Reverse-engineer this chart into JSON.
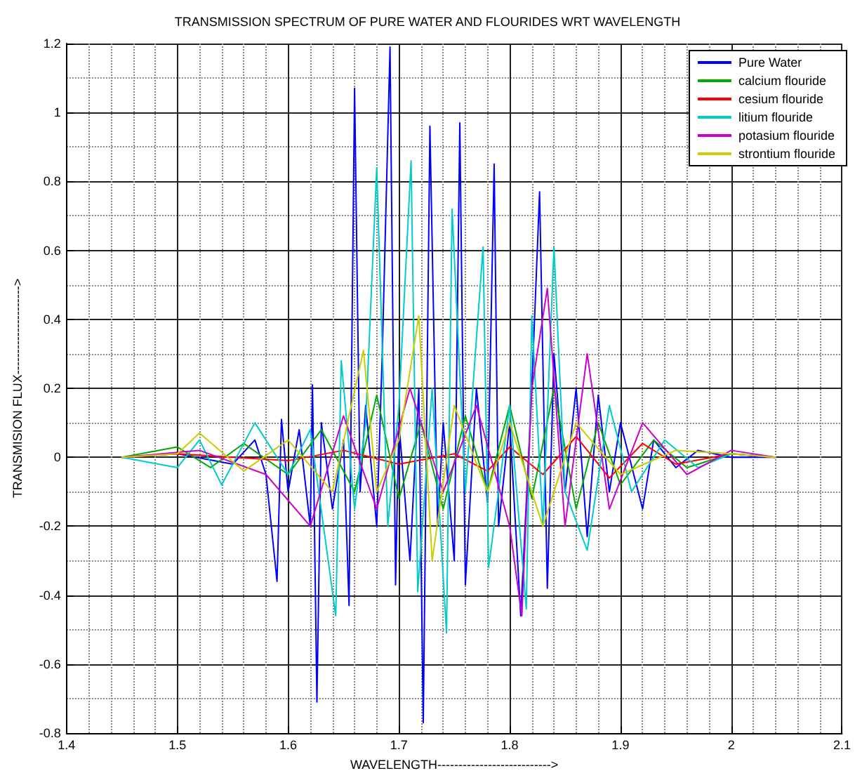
{
  "chart_data": {
    "type": "line",
    "title": "TRANSMISSION SPECTRUM OF PURE WATER AND FLOURIDES WRT WAVELENGTH",
    "xlabel": "WAVELENGTH--------------------------->",
    "ylabel": "TRANSMISION FLUX--------------------->",
    "xlim": [
      1.4,
      2.1
    ],
    "xticks": [
      1.4,
      1.5,
      1.6,
      1.7,
      1.8,
      1.9,
      2,
      2.1
    ],
    "ylim": [
      -0.8,
      1.2
    ],
    "yticks": [
      -0.8,
      -0.6,
      -0.4,
      -0.2,
      0,
      0.2,
      0.4,
      0.6,
      0.8,
      1,
      1.2
    ],
    "grid": true,
    "legend": "top right",
    "marker": "none",
    "line_style": "solid",
    "series": [
      {
        "name": "Pure Water",
        "color": "#0000ff",
        "x": [
          1.45,
          1.5,
          1.55,
          1.57,
          1.58,
          1.59,
          1.594,
          1.6,
          1.61,
          1.62,
          1.622,
          1.626,
          1.63,
          1.64,
          1.65,
          1.655,
          1.66,
          1.665,
          1.67,
          1.68,
          1.685,
          1.692,
          1.697,
          1.7,
          1.71,
          1.718,
          1.722,
          1.728,
          1.735,
          1.74,
          1.75,
          1.755,
          1.76,
          1.77,
          1.78,
          1.786,
          1.79,
          1.8,
          1.81,
          1.82,
          1.827,
          1.834,
          1.84,
          1.85,
          1.86,
          1.87,
          1.88,
          1.89,
          1.9,
          1.92,
          1.93,
          1.95,
          1.97,
          2.0,
          2.04
        ],
        "values": [
          0,
          0.01,
          -0.02,
          0.05,
          -0.05,
          -0.36,
          0.11,
          -0.1,
          0.08,
          -0.2,
          0.21,
          -0.71,
          0.1,
          -0.15,
          0.05,
          -0.43,
          1.07,
          -0.1,
          0.15,
          -0.2,
          0.3,
          1.19,
          -0.37,
          0.1,
          -0.3,
          0.2,
          -0.77,
          0.96,
          -0.2,
          0.1,
          -0.3,
          0.97,
          -0.37,
          0.2,
          -0.13,
          0.85,
          -0.2,
          0.1,
          -0.46,
          0.2,
          0.77,
          -0.38,
          0.3,
          -0.1,
          0.2,
          -0.23,
          0.18,
          -0.1,
          0.1,
          -0.15,
          0.05,
          -0.03,
          0.02,
          0,
          0
        ]
      },
      {
        "name": "calcium flouride",
        "color": "#00aa00",
        "x": [
          1.45,
          1.5,
          1.53,
          1.56,
          1.6,
          1.63,
          1.66,
          1.68,
          1.7,
          1.72,
          1.74,
          1.76,
          1.78,
          1.8,
          1.82,
          1.84,
          1.86,
          1.88,
          1.9,
          1.93,
          1.96,
          2.0,
          2.04
        ],
        "values": [
          0,
          0.03,
          -0.03,
          0.04,
          -0.05,
          0.08,
          -0.1,
          0.18,
          -0.12,
          0.1,
          -0.15,
          0.12,
          -0.1,
          0.15,
          -0.12,
          0.2,
          -0.15,
          0.1,
          -0.08,
          0.05,
          -0.03,
          0.01,
          0
        ]
      },
      {
        "name": "cesium flouride",
        "color": "#ff0000",
        "x": [
          1.45,
          1.5,
          1.55,
          1.6,
          1.65,
          1.7,
          1.75,
          1.78,
          1.8,
          1.83,
          1.86,
          1.89,
          1.92,
          1.95,
          2.0,
          2.04
        ],
        "values": [
          0,
          0.01,
          0,
          -0.01,
          0.02,
          -0.02,
          0.01,
          -0.04,
          0.03,
          -0.05,
          0.06,
          -0.06,
          0.04,
          -0.02,
          0.01,
          0
        ]
      },
      {
        "name": "litium flouride",
        "color": "#00cccc",
        "x": [
          1.45,
          1.5,
          1.52,
          1.54,
          1.57,
          1.6,
          1.62,
          1.643,
          1.648,
          1.66,
          1.67,
          1.68,
          1.69,
          1.7,
          1.711,
          1.717,
          1.73,
          1.743,
          1.748,
          1.76,
          1.776,
          1.781,
          1.8,
          1.815,
          1.82,
          1.83,
          1.84,
          1.85,
          1.87,
          1.89,
          1.91,
          1.94,
          1.97,
          2.0,
          2.04
        ],
        "values": [
          0,
          -0.03,
          0.05,
          -0.08,
          0.1,
          -0.05,
          0.08,
          -0.46,
          0.28,
          -0.15,
          0.1,
          0.84,
          -0.2,
          0.15,
          0.86,
          -0.39,
          0.2,
          -0.51,
          0.72,
          -0.1,
          0.61,
          -0.32,
          0.15,
          -0.44,
          0.41,
          -0.2,
          0.61,
          -0.1,
          -0.27,
          0.15,
          -0.1,
          0.05,
          -0.03,
          0.01,
          0
        ]
      },
      {
        "name": "potasium flouride",
        "color": "#cc00cc",
        "x": [
          1.45,
          1.52,
          1.58,
          1.62,
          1.65,
          1.68,
          1.71,
          1.74,
          1.77,
          1.8,
          1.811,
          1.82,
          1.834,
          1.85,
          1.87,
          1.89,
          1.92,
          1.96,
          2.0,
          2.04
        ],
        "values": [
          0,
          0.02,
          -0.05,
          -0.2,
          0.12,
          -0.15,
          0.2,
          -0.1,
          0.15,
          -0.2,
          -0.46,
          0.2,
          0.49,
          -0.2,
          0.3,
          -0.15,
          0.1,
          -0.05,
          0.02,
          0
        ]
      },
      {
        "name": "strontium flouride",
        "color": "#cccc00",
        "x": [
          1.45,
          1.5,
          1.52,
          1.56,
          1.6,
          1.64,
          1.668,
          1.68,
          1.7,
          1.718,
          1.73,
          1.75,
          1.78,
          1.8,
          1.83,
          1.86,
          1.9,
          1.95,
          2.0,
          2.04
        ],
        "values": [
          0,
          0.01,
          0.07,
          -0.04,
          0.05,
          -0.1,
          0.31,
          -0.1,
          0.05,
          0.41,
          -0.3,
          0.15,
          -0.1,
          0.1,
          -0.2,
          0.1,
          -0.05,
          0.02,
          0.01,
          0
        ]
      }
    ]
  }
}
